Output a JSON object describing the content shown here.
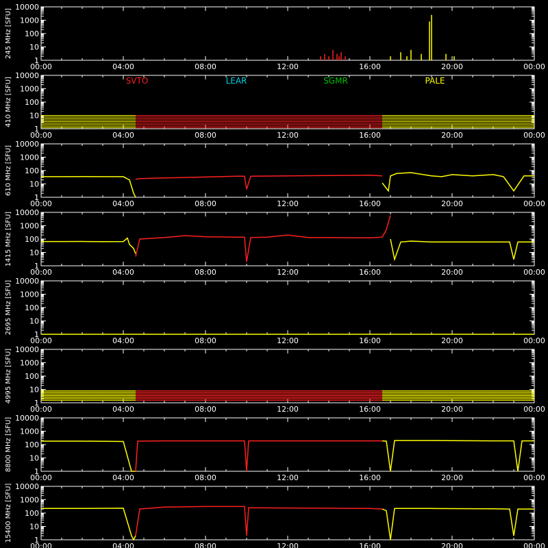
{
  "chart_data": {
    "type": "line",
    "title": "",
    "y_unit": "[SFU]",
    "x_ticks": [
      "00:00",
      "04:00",
      "08:00",
      "12:00",
      "16:00",
      "20:00",
      "00:00"
    ],
    "x_range_hours": [
      0,
      24
    ],
    "y_ticks": [
      "1",
      "10",
      "100",
      "1000",
      "10000"
    ],
    "ylim": [
      1,
      10000
    ],
    "y_scale": "log",
    "grid": false,
    "colors": {
      "background": "#000000",
      "axes": "#ffffff",
      "SVTO": "#ff2020",
      "LEAR": "#00d0e0",
      "SGMR": "#00c000",
      "PALE": "#ffff00"
    },
    "stations": [
      {
        "name": "SVTO",
        "color": "#ff2020"
      },
      {
        "name": "LEAR",
        "color": "#00d0e0"
      },
      {
        "name": "SGMR",
        "color": "#00c000"
      },
      {
        "name": "PALE",
        "color": "#ffff00"
      }
    ],
    "panels": [
      {
        "ylabel": "245 MHz",
        "series": [
          {
            "station": "SVTO",
            "style": "points",
            "x": [
              13.6,
              13.8,
              14.0,
              14.2,
              14.4,
              14.5,
              14.6,
              14.8
            ],
            "y": [
              2,
              3,
              2,
              6,
              3,
              2,
              4,
              2
            ]
          },
          {
            "station": "PALE",
            "style": "points",
            "x": [
              17.0,
              17.5,
              17.8,
              18.0,
              18.5,
              18.9,
              19.0,
              19.7,
              20.1
            ],
            "y": [
              2,
              4,
              2,
              6,
              3,
              800,
              2500,
              3,
              2
            ]
          }
        ]
      },
      {
        "ylabel": "410 MHz",
        "series": [
          {
            "station": "PALE",
            "style": "band",
            "x": [
              0,
              4.6
            ],
            "y": [
              1.2,
              10
            ]
          },
          {
            "station": "SVTO",
            "style": "band",
            "x": [
              4.6,
              16.6
            ],
            "y": [
              1.2,
              10
            ]
          },
          {
            "station": "PALE",
            "style": "band",
            "x": [
              16.6,
              24
            ],
            "y": [
              1.2,
              10
            ]
          }
        ]
      },
      {
        "ylabel": "610 MHz",
        "series": [
          {
            "station": "PALE",
            "style": "line",
            "x": [
              0,
              1,
              2,
              3,
              4,
              4.3,
              4.5,
              4.6
            ],
            "y": [
              35,
              35,
              36,
              35,
              35,
              20,
              2,
              1
            ]
          },
          {
            "station": "SVTO",
            "style": "line",
            "x": [
              4.6,
              4.8,
              6,
              8,
              9.5,
              9.9,
              10.0,
              10.2,
              12,
              14,
              16,
              16.6
            ],
            "y": [
              22,
              25,
              28,
              33,
              38,
              38,
              4,
              38,
              40,
              42,
              45,
              40
            ]
          },
          {
            "station": "PALE",
            "style": "line",
            "x": [
              16.6,
              16.9,
              17.0,
              17.3,
              18,
              19,
              19.5,
              20,
              21,
              22,
              22.5,
              23,
              23.5,
              24
            ],
            "y": [
              12,
              3,
              40,
              60,
              70,
              40,
              35,
              50,
              40,
              50,
              35,
              3,
              40,
              40
            ]
          }
        ]
      },
      {
        "ylabel": "1415 MHz",
        "series": [
          {
            "station": "PALE",
            "style": "line",
            "x": [
              0,
              1,
              2,
              3,
              4,
              4.2,
              4.3,
              4.5,
              4.6
            ],
            "y": [
              65,
              65,
              66,
              64,
              65,
              120,
              40,
              20,
              8
            ]
          },
          {
            "station": "SVTO",
            "style": "line",
            "x": [
              4.6,
              4.8,
              6,
              7,
              8,
              9.5,
              9.9,
              10.0,
              10.2,
              11,
              12,
              13,
              14,
              15,
              16,
              16.6,
              16.8,
              17.0
            ],
            "y": [
              5,
              100,
              130,
              180,
              150,
              140,
              140,
              2,
              130,
              140,
              200,
              130,
              130,
              125,
              125,
              140,
              500,
              6000
            ]
          },
          {
            "station": "PALE",
            "style": "line",
            "x": [
              17.0,
              17.2,
              17.5,
              18,
              19,
              20,
              21,
              22,
              22.8,
              23.0,
              23.2,
              23.6,
              24
            ],
            "y": [
              100,
              3,
              60,
              70,
              60,
              60,
              60,
              60,
              60,
              3,
              60,
              60,
              60
            ]
          }
        ]
      },
      {
        "ylabel": "2695 MHz",
        "series": [
          {
            "station": "PALE",
            "style": "line",
            "x": [
              0,
              24
            ],
            "y": [
              1,
              1
            ]
          }
        ]
      },
      {
        "ylabel": "4995 MHz",
        "series": [
          {
            "station": "PALE",
            "style": "band",
            "x": [
              0,
              4.6
            ],
            "y": [
              1.5,
              8
            ]
          },
          {
            "station": "SVTO",
            "style": "band",
            "x": [
              4.6,
              16.6
            ],
            "y": [
              1.5,
              8
            ]
          },
          {
            "station": "PALE",
            "style": "band",
            "x": [
              16.6,
              24
            ],
            "y": [
              1.5,
              8
            ]
          }
        ]
      },
      {
        "ylabel": "8800 MHz",
        "series": [
          {
            "station": "PALE",
            "style": "line",
            "x": [
              0,
              2,
              4,
              4.4,
              4.6
            ],
            "y": [
              180,
              180,
              170,
              1,
              1
            ]
          },
          {
            "station": "SVTO",
            "style": "line",
            "x": [
              4.6,
              4.7,
              6,
              9.9,
              10.0,
              10.1,
              12,
              16,
              16.6
            ],
            "y": [
              1,
              180,
              190,
              190,
              1,
              190,
              190,
              190,
              190
            ]
          },
          {
            "station": "PALE",
            "style": "line",
            "x": [
              16.6,
              16.8,
              17.0,
              17.2,
              19,
              22,
              23.0,
              23.2,
              23.4,
              24
            ],
            "y": [
              190,
              180,
              1,
              200,
              200,
              190,
              190,
              1,
              190,
              190
            ]
          }
        ]
      },
      {
        "ylabel": "15400 MHz",
        "series": [
          {
            "station": "PALE",
            "style": "line",
            "x": [
              0,
              2,
              4,
              4.4,
              4.5,
              4.6
            ],
            "y": [
              220,
              220,
              230,
              2,
              1,
              2
            ]
          },
          {
            "station": "SVTO",
            "style": "line",
            "x": [
              4.6,
              4.8,
              6,
              8,
              9.9,
              10.0,
              10.1,
              12,
              14,
              16,
              16.6
            ],
            "y": [
              2,
              200,
              280,
              310,
              310,
              2,
              250,
              240,
              230,
              220,
              200
            ]
          },
          {
            "station": "PALE",
            "style": "line",
            "x": [
              16.6,
              16.8,
              17.0,
              17.2,
              19,
              22,
              22.8,
              23.0,
              23.2,
              24
            ],
            "y": [
              200,
              150,
              1,
              220,
              220,
              210,
              200,
              2,
              200,
              200
            ]
          }
        ]
      }
    ]
  }
}
